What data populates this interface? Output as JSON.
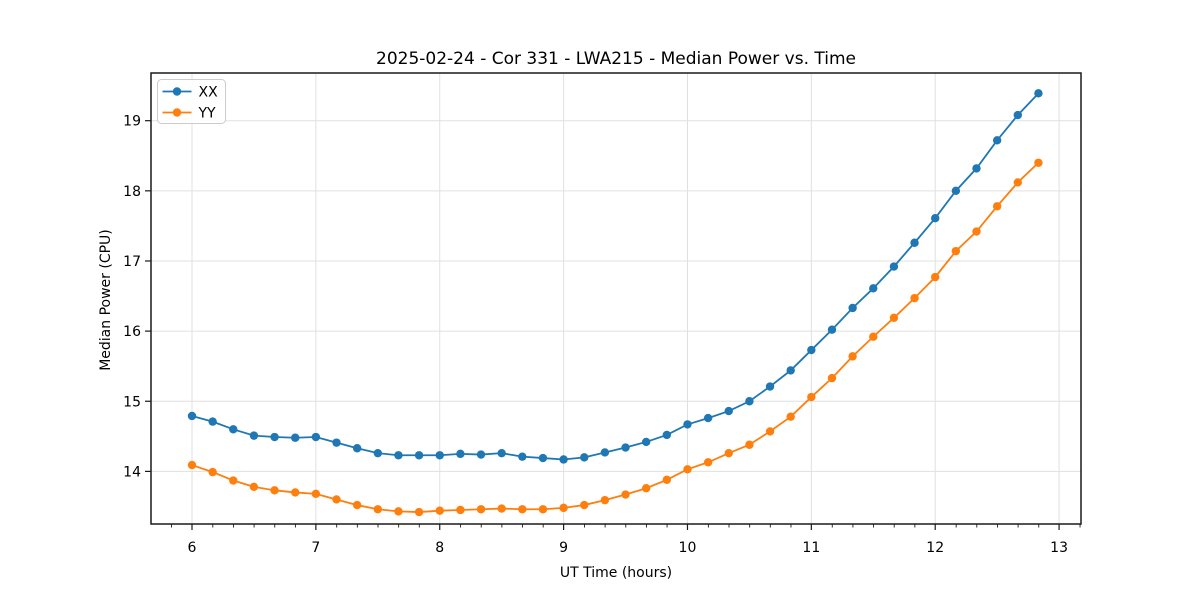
{
  "chart": {
    "title": "2025-02-24 - Cor 331 - LWA215 - Median Power vs. Time"
  },
  "chart_data": {
    "type": "line",
    "title": "2025-02-24 - Cor 331 - LWA215 - Median Power vs. Time",
    "xlabel": "UT Time (hours)",
    "ylabel": "Median Power (CPU)",
    "xlim": [
      5.669,
      13.177
    ],
    "ylim": [
      13.25,
      19.68
    ],
    "x_ticks": [
      6,
      7,
      8,
      9,
      10,
      11,
      12,
      13
    ],
    "y_ticks": [
      14,
      15,
      16,
      17,
      18,
      19
    ],
    "x_minor_step": 0.1667,
    "grid": true,
    "legend_position": "upper-left",
    "marker": "circle",
    "x": [
      6.0,
      6.1667,
      6.3333,
      6.5,
      6.6667,
      6.8333,
      7.0,
      7.1667,
      7.3333,
      7.5,
      7.6667,
      7.8333,
      8.0,
      8.1667,
      8.3333,
      8.5,
      8.6667,
      8.8333,
      9.0,
      9.1667,
      9.3333,
      9.5,
      9.6667,
      9.8333,
      10.0,
      10.1667,
      10.3333,
      10.5,
      10.6667,
      10.8333,
      11.0,
      11.1667,
      11.3333,
      11.5,
      11.6667,
      11.8333,
      12.0,
      12.1667,
      12.3333,
      12.5,
      12.6667,
      12.8333
    ],
    "series": [
      {
        "name": "XX",
        "color": "#1f77b4",
        "values": [
          14.79,
          14.71,
          14.6,
          14.51,
          14.49,
          14.48,
          14.49,
          14.41,
          14.33,
          14.26,
          14.23,
          14.23,
          14.23,
          14.25,
          14.24,
          14.26,
          14.21,
          14.19,
          14.17,
          14.2,
          14.27,
          14.34,
          14.42,
          14.52,
          14.67,
          14.76,
          14.86,
          15.0,
          15.21,
          15.44,
          15.73,
          16.02,
          16.33,
          16.61,
          16.92,
          17.26,
          17.61,
          18.0,
          18.32,
          18.72,
          19.08,
          19.39
        ]
      },
      {
        "name": "YY",
        "color": "#ff7f0e",
        "values": [
          14.09,
          13.99,
          13.87,
          13.78,
          13.73,
          13.7,
          13.68,
          13.6,
          13.52,
          13.46,
          13.43,
          13.42,
          13.44,
          13.45,
          13.46,
          13.47,
          13.46,
          13.46,
          13.48,
          13.52,
          13.59,
          13.67,
          13.76,
          13.88,
          14.03,
          14.13,
          14.26,
          14.38,
          14.57,
          14.78,
          15.06,
          15.33,
          15.64,
          15.92,
          16.19,
          16.47,
          16.77,
          17.14,
          17.42,
          17.78,
          18.12,
          18.4
        ]
      }
    ]
  },
  "colors": {
    "grid": "#e0e0e0",
    "spine": "#1a1a1a",
    "tick": "#1a1a1a",
    "legend_border": "#cccccc",
    "legend_bg": "#ffffff"
  }
}
